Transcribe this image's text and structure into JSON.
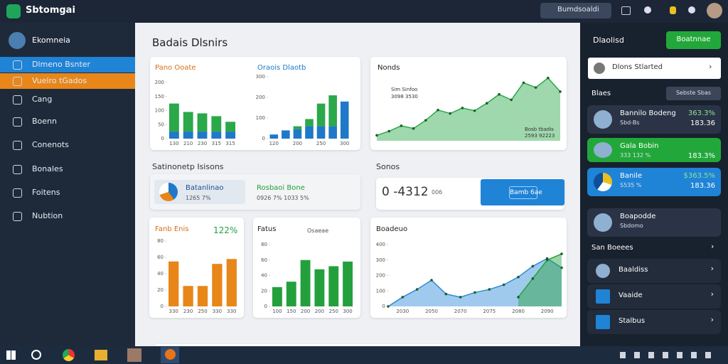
{
  "topbar": {
    "app_name": "Sbtomgai",
    "search": "Bumdsoaldi"
  },
  "sidebar": {
    "user": "Ekomneia",
    "items": [
      "Dlmeno Bsnter",
      "Vuelro tGados",
      "Cang",
      "Boenn",
      "Conenots",
      "Bonales",
      "Foitens",
      "Nubtion"
    ]
  },
  "main": {
    "title": "Badais Dlsnirs",
    "section_left": "Satinonetp Isisons",
    "section_right": "Sonos",
    "stats": [
      {
        "title": "Batanlinao",
        "sub": "1265 7%"
      },
      {
        "title": "Rosbaoi Bone",
        "sub": "0926 7% 1033 5%"
      }
    ],
    "counter": {
      "display": "0 -4312",
      "sub": "006",
      "button": "Bamb 6ae"
    },
    "charts": [
      {
        "type": "bar",
        "stacked": true,
        "title": "Pano Ooate",
        "categories": [
          "130",
          "210",
          "230",
          "315",
          "315"
        ],
        "ylim": [
          0,
          200
        ],
        "yticks": [
          0,
          50,
          100,
          150,
          200
        ],
        "series": [
          {
            "color": "#1f78c8",
            "values": [
              25,
              25,
              25,
              25,
              25
            ]
          },
          {
            "color": "#2aa84a",
            "values": [
              100,
              70,
              65,
              55,
              35
            ]
          }
        ]
      },
      {
        "type": "bar",
        "stacked": true,
        "title": "Oraois Dlaotb",
        "categories": [
          "120",
          null,
          "200",
          null,
          "250",
          null,
          "300"
        ],
        "ylim": [
          0,
          300
        ],
        "yticks": [
          0,
          100,
          200,
          300
        ],
        "series": [
          {
            "color": "#1f78c8",
            "values": [
              20,
              40,
              45,
              60,
              60,
              60,
              180
            ]
          },
          {
            "color": "#2aa84a",
            "values": [
              0,
              0,
              15,
              35,
              110,
              150,
              0
            ]
          }
        ]
      },
      {
        "type": "area",
        "title": "Nonds",
        "ylim": [
          0,
          100
        ],
        "legend": [
          "Sim Sinfoo",
          "3098 3530"
        ],
        "annotation": [
          "Bosb tbadis",
          "2593 92223"
        ],
        "series": [
          {
            "color": "#2aa84a",
            "values": [
              8,
              14,
              22,
              18,
              30,
              45,
              40,
              48,
              44,
              55,
              68,
              60,
              85,
              78,
              92,
              72
            ]
          }
        ]
      },
      {
        "type": "bar",
        "title": "Fanb Enis",
        "badge": "122%",
        "categories": [
          "330",
          "230",
          "250",
          "330",
          "330"
        ],
        "ylim": [
          0,
          80
        ],
        "yticks": [
          0,
          20,
          40,
          60,
          80
        ],
        "series": [
          {
            "color": "#e8861a",
            "values": [
              55,
              25,
              25,
              52,
              58
            ]
          }
        ]
      },
      {
        "type": "bar",
        "title": "Fatus",
        "legend": [
          "Osaeae"
        ],
        "categories": [
          "100",
          "150",
          "200",
          "200",
          "250",
          "300"
        ],
        "ylim": [
          0,
          80
        ],
        "yticks": [
          0,
          20,
          40,
          60,
          80
        ],
        "series": [
          {
            "color": "#23a03c",
            "values": [
              25,
              32,
              60,
              48,
              52,
              58
            ]
          }
        ]
      },
      {
        "type": "area",
        "title": "Boadeuo",
        "categories": [
          "2030",
          "2050",
          "2070",
          "2075",
          "2080",
          "2090"
        ],
        "ylim": [
          0,
          400
        ],
        "yticks": [
          0,
          100,
          200,
          300,
          400
        ],
        "series": [
          {
            "color": "#2c8ad8",
            "values": [
              0,
              60,
              110,
              170,
              80,
              60,
              90,
              110,
              140,
              190,
              260,
              310,
              250
            ]
          },
          {
            "color": "#23a03c",
            "values": [
              null,
              null,
              null,
              null,
              null,
              null,
              null,
              null,
              null,
              60,
              180,
              300,
              340
            ]
          }
        ]
      }
    ]
  },
  "right": {
    "header": "Dlaolisd",
    "button": "Boatnnae",
    "selector": "Dlons Stlarted",
    "section": "Blaes",
    "dropdown": "Sebste Sbas",
    "cards": [
      {
        "title": "Bannilo Bodeng",
        "sub": "Sbd-Bs",
        "v1": "363.3%",
        "v2": "183.36"
      },
      {
        "title": "Gala Bobin",
        "sub": "333 132 %",
        "v2": "183.3%"
      },
      {
        "title": "Banile",
        "sub": "S535 %",
        "v1": "$363.5%",
        "v2": "183.36"
      },
      {
        "title": "Boapodde",
        "sub": "Sbdomo"
      }
    ],
    "section2": "San Boeees",
    "list": [
      "Baaldiss",
      "Vaaide",
      "Stalbus"
    ]
  }
}
